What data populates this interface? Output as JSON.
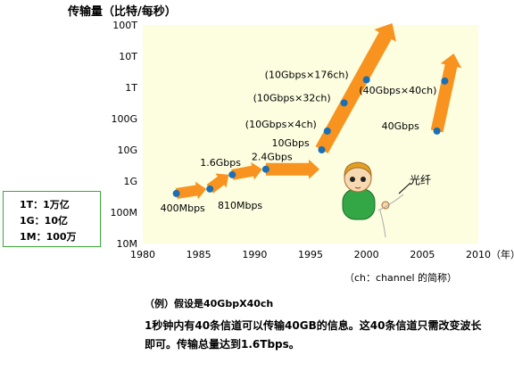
{
  "page": {
    "y_title": "传输量（比特/每秒）",
    "legend": [
      "1T：1万亿",
      "1G：10亿",
      "1M：100万"
    ],
    "note": "（ch：channel 的简称）",
    "example_title": "（例）假设是40GbpX40ch",
    "example_body": "1秒钟内有40条信道可以传输40GB的信息。这40条信道只需改变波长即可。传输总量达到1.6Tbps。",
    "fiber_label": "光纤"
  },
  "chart_data": {
    "type": "line",
    "xlabel": "（年）",
    "ylabel": "传输量（比特/每秒）",
    "x_ticks": [
      1980,
      1985,
      1990,
      1995,
      2000,
      2005,
      2010
    ],
    "xlim": [
      1980,
      2010
    ],
    "y_scale": "log",
    "y_ticks": [
      "10M",
      "100M",
      "1G",
      "10G",
      "100G",
      "1T",
      "10T",
      "100T"
    ],
    "y_tick_values": [
      10000000,
      100000000,
      1000000000,
      10000000000,
      100000000000,
      1000000000000,
      10000000000000,
      100000000000000
    ],
    "ylim": [
      10000000,
      100000000000000
    ],
    "series": [
      {
        "points": [
          {
            "x": 1983,
            "y": 400000000,
            "label": "400Mbps"
          },
          {
            "x": 1986,
            "y": 560000000,
            "label": ""
          },
          {
            "x": 1988,
            "y": 1600000000,
            "label": "1.6Gbps"
          },
          {
            "x": 1991,
            "y": 2400000000,
            "label": "2.4Gbps"
          },
          {
            "x": 1996,
            "y": 10000000000,
            "label": "10Gbps"
          },
          {
            "x": 1996.5,
            "y": 40000000000,
            "label": "(10Gbps×4ch)"
          },
          {
            "x": 1998,
            "y": 320000000000,
            "label": "(10Gbps×32ch)"
          },
          {
            "x": 2000,
            "y": 1760000000000,
            "label": "(10Gbps×176ch)"
          }
        ],
        "extra_labels": [
          "810Mbps"
        ]
      },
      {
        "points": [
          {
            "x": 2006.3,
            "y": 40000000000,
            "label": "40Gbps"
          },
          {
            "x": 2007,
            "y": 1600000000000,
            "label": "(40Gbps×40ch)"
          }
        ]
      }
    ],
    "colors": {
      "plot_bg": "#fdfde0",
      "arrow": "#f7931e",
      "point": "#1a6fb5",
      "border": "#3aaa35"
    }
  }
}
